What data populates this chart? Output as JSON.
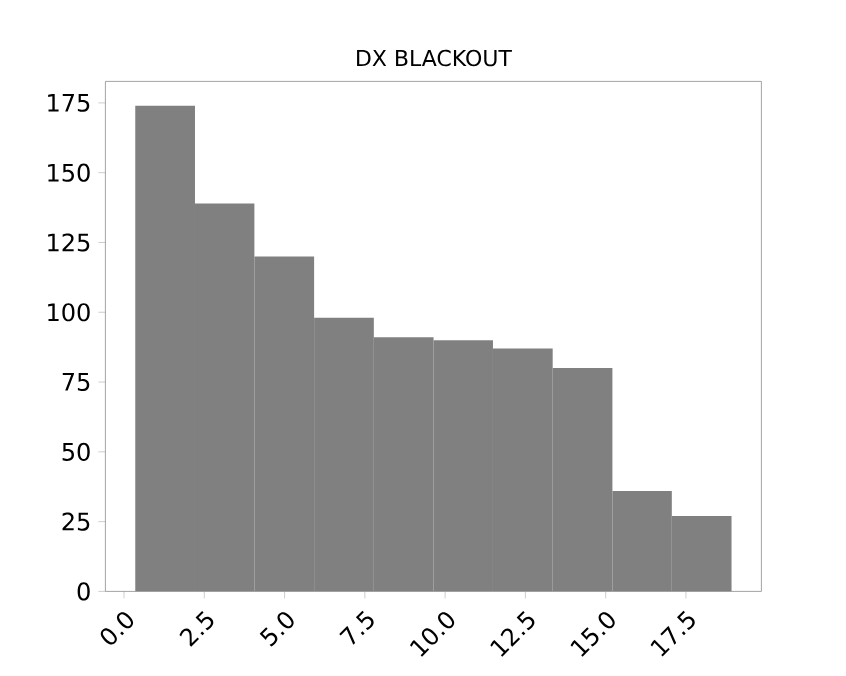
{
  "chart_data": {
    "type": "histogram",
    "title": "DX BLACKOUT",
    "bins": [
      0.35,
      2.21,
      4.06,
      5.92,
      7.78,
      9.64,
      11.49,
      13.35,
      15.21,
      17.06,
      18.92
    ],
    "values": [
      174,
      139,
      120,
      98,
      91,
      90,
      87,
      80,
      36,
      27
    ],
    "color": "#808080",
    "xlim": [
      -0.58,
      19.85
    ],
    "ylim": [
      0,
      182.7
    ],
    "xticks": [
      {
        "value": 0,
        "label": "0.0"
      },
      {
        "value": 2.5,
        "label": "2.5"
      },
      {
        "value": 5,
        "label": "5.0"
      },
      {
        "value": 7.5,
        "label": "7.5"
      },
      {
        "value": 10,
        "label": "10.0"
      },
      {
        "value": 12.5,
        "label": "12.5"
      },
      {
        "value": 15,
        "label": "15.0"
      },
      {
        "value": 17.5,
        "label": "17.5"
      }
    ],
    "yticks": [
      0,
      25,
      50,
      75,
      100,
      125,
      150,
      175
    ]
  }
}
